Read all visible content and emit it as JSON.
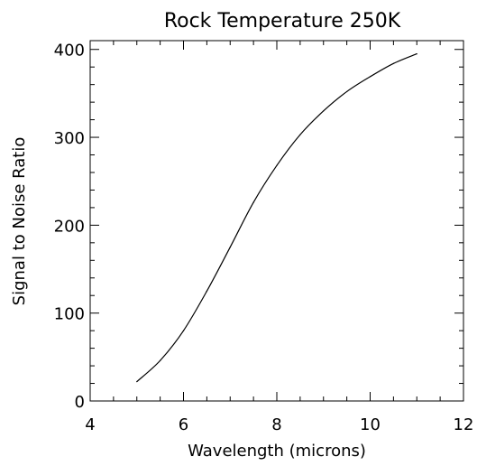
{
  "chart_data": {
    "type": "line",
    "title": "Rock Temperature 250K",
    "xlabel": "Wavelength (microns)",
    "ylabel": "Signal to Noise Ratio",
    "xlim": [
      4,
      12
    ],
    "ylim": [
      0,
      410
    ],
    "x_ticks": [
      4,
      6,
      8,
      10,
      12
    ],
    "y_ticks": [
      0,
      100,
      200,
      300,
      400
    ],
    "x_minor_step": 0.5,
    "y_minor_step": 20,
    "grid": false,
    "series": [
      {
        "x": [
          5.0,
          5.5,
          6.0,
          6.5,
          7.0,
          7.5,
          8.0,
          8.5,
          9.0,
          9.5,
          10.0,
          10.5,
          11.0
        ],
        "values": [
          22,
          46,
          80,
          125,
          175,
          226,
          268,
          303,
          330,
          352,
          369,
          384,
          395
        ]
      }
    ]
  }
}
